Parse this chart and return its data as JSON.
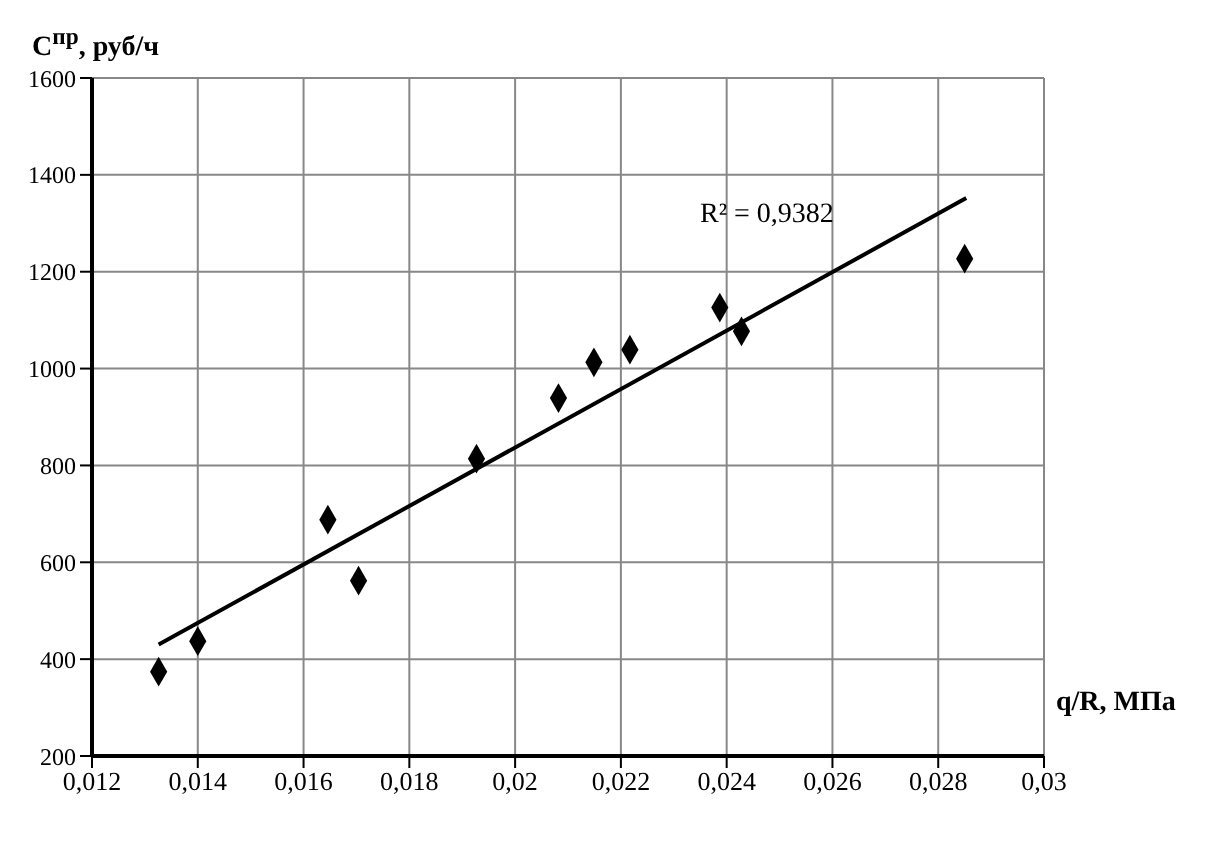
{
  "chart_data": {
    "type": "scatter",
    "ylabel": "C$^{пр}$, руб/ч",
    "xlabel": "q/R, МПа",
    "annotations": [
      "R² = 0,9382"
    ],
    "xlim": [
      0.012,
      0.03
    ],
    "xticks": [
      {
        "value": 0.012,
        "label": "0,012"
      },
      {
        "value": 0.014,
        "label": "0,014"
      },
      {
        "value": 0.016,
        "label": "0,016"
      },
      {
        "value": 0.018,
        "label": "0,018"
      },
      {
        "value": 0.02,
        "label": "0,02"
      },
      {
        "value": 0.022,
        "label": "0,022"
      },
      {
        "value": 0.024,
        "label": "0,024"
      },
      {
        "value": 0.026,
        "label": "0,026"
      },
      {
        "value": 0.028,
        "label": "0,028"
      },
      {
        "value": 0.03,
        "label": "0,03"
      }
    ],
    "ylim": [
      200,
      1600
    ],
    "yticks": [
      200,
      400,
      600,
      800,
      1000,
      1200,
      1400,
      1600
    ],
    "grid": true,
    "series": [
      {
        "marker": "diamond",
        "color": "#000000",
        "x": [
          0.01326,
          0.014,
          0.01646,
          0.01704,
          0.01927,
          0.02082,
          0.02149,
          0.02217,
          0.02387,
          0.02428,
          0.0285
        ],
        "values": [
          374,
          437,
          688,
          562,
          814,
          939,
          1013,
          1039,
          1126,
          1077,
          1227
        ]
      },
      {
        "type": "line",
        "marker": "none",
        "color": "#000000",
        "x": [
          0.01326,
          0.02853
        ],
        "values": [
          430,
          1352
        ]
      }
    ]
  }
}
